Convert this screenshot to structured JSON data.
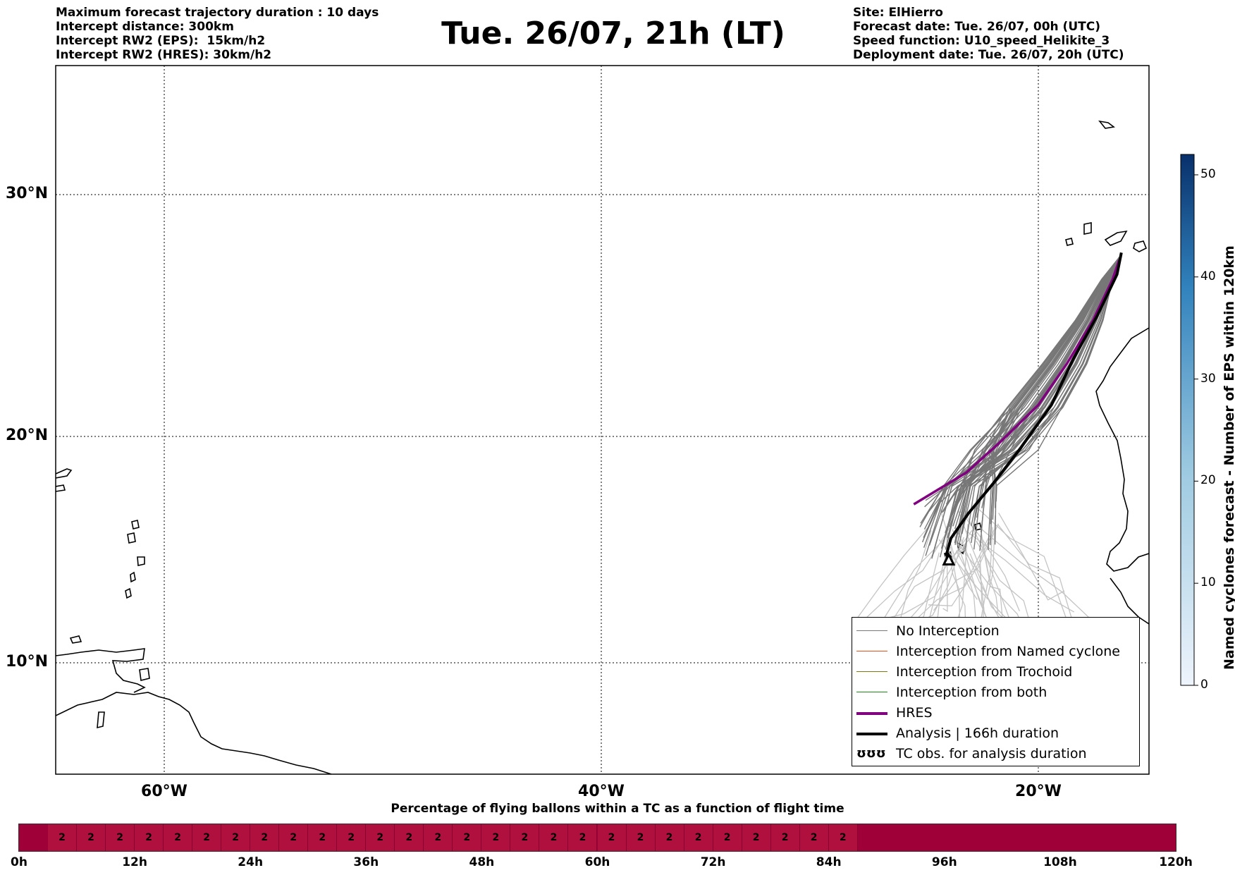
{
  "header": {
    "left_lines": [
      "Maximum forecast trajectory duration : 10 days",
      "Intercept distance: 300km",
      "Intercept RW2 (EPS):  15km/h2",
      "Intercept RW2 (HRES): 30km/h2"
    ],
    "title": "Tue. 26/07, 21h (LT)",
    "right_lines": [
      "Site: ElHierro",
      "Forecast date: Tue. 26/07, 00h (UTC)",
      "Speed function: U10_speed_Helikite_3",
      "Deployment date: Tue. 26/07, 20h (UTC)"
    ]
  },
  "map": {
    "lat_labels": [
      "30°N",
      "20°N",
      "10°N"
    ],
    "lon_labels": [
      "60°W",
      "40°W",
      "20°W"
    ],
    "lat_values": [
      30,
      20,
      10
    ],
    "lon_values": [
      -60,
      -40,
      -20
    ],
    "lon_range": [
      -65,
      15
    ],
    "lat_range": [
      5.3,
      35.3
    ]
  },
  "legend": {
    "items": [
      {
        "label": "No Interception",
        "color": "#777777",
        "style": "thin"
      },
      {
        "label": "Interception from Named cyclone",
        "color": "#e8521c",
        "style": "thin"
      },
      {
        "label": "Interception from Trochoid",
        "color": "#7a7a10",
        "style": "thin"
      },
      {
        "label": "Interception from both",
        "color": "#1e8a1e",
        "style": "thin"
      },
      {
        "label": "HRES",
        "color": "#800080",
        "style": "thick"
      },
      {
        "label": "Analysis | 166h duration",
        "color": "#000000",
        "style": "thick"
      },
      {
        "label": "TC obs. for analysis duration",
        "color": "#000000",
        "style": "symbol",
        "symbol": "ʊʊʊ"
      }
    ]
  },
  "colorbar": {
    "title": "Named cyclones forecast - Number of EPS within 120km",
    "ticks": [
      "0",
      "10",
      "20",
      "30",
      "40",
      "50"
    ],
    "tick_values": [
      0,
      10,
      20,
      30,
      40,
      50
    ],
    "max": 52,
    "color_low": "#e6f0fa",
    "color_high": "#08306b"
  },
  "time_bar": {
    "title": "Percentage of flying ballons within a TC as a function of flight time",
    "ticks": [
      "0h",
      "12h",
      "24h",
      "36h",
      "48h",
      "60h",
      "72h",
      "84h",
      "96h",
      "108h",
      "120h"
    ],
    "cell_value": "2",
    "cell_count": 28
  },
  "chart_data": {
    "type": "map",
    "hres_path": [
      [
        -16.3,
        27.3
      ],
      [
        -16.6,
        26.5
      ],
      [
        -17.5,
        24.8
      ],
      [
        -18.7,
        23.0
      ],
      [
        -20.0,
        21.3
      ],
      [
        -21.8,
        19.7
      ],
      [
        -23.3,
        18.4
      ],
      [
        -24.5,
        17.7
      ],
      [
        -25.7,
        17.0
      ]
    ],
    "analysis_path": [
      [
        -16.2,
        27.6
      ],
      [
        -16.4,
        26.7
      ],
      [
        -17.3,
        25.0
      ],
      [
        -18.4,
        23.2
      ],
      [
        -19.4,
        21.3
      ],
      [
        -20.8,
        19.5
      ],
      [
        -22.0,
        18.0
      ],
      [
        -23.2,
        16.6
      ],
      [
        -24.0,
        15.5
      ],
      [
        -24.2,
        14.8
      ],
      [
        -24.1,
        14.5
      ]
    ],
    "analysis_end_marker": [
      -24.1,
      14.5
    ]
  }
}
